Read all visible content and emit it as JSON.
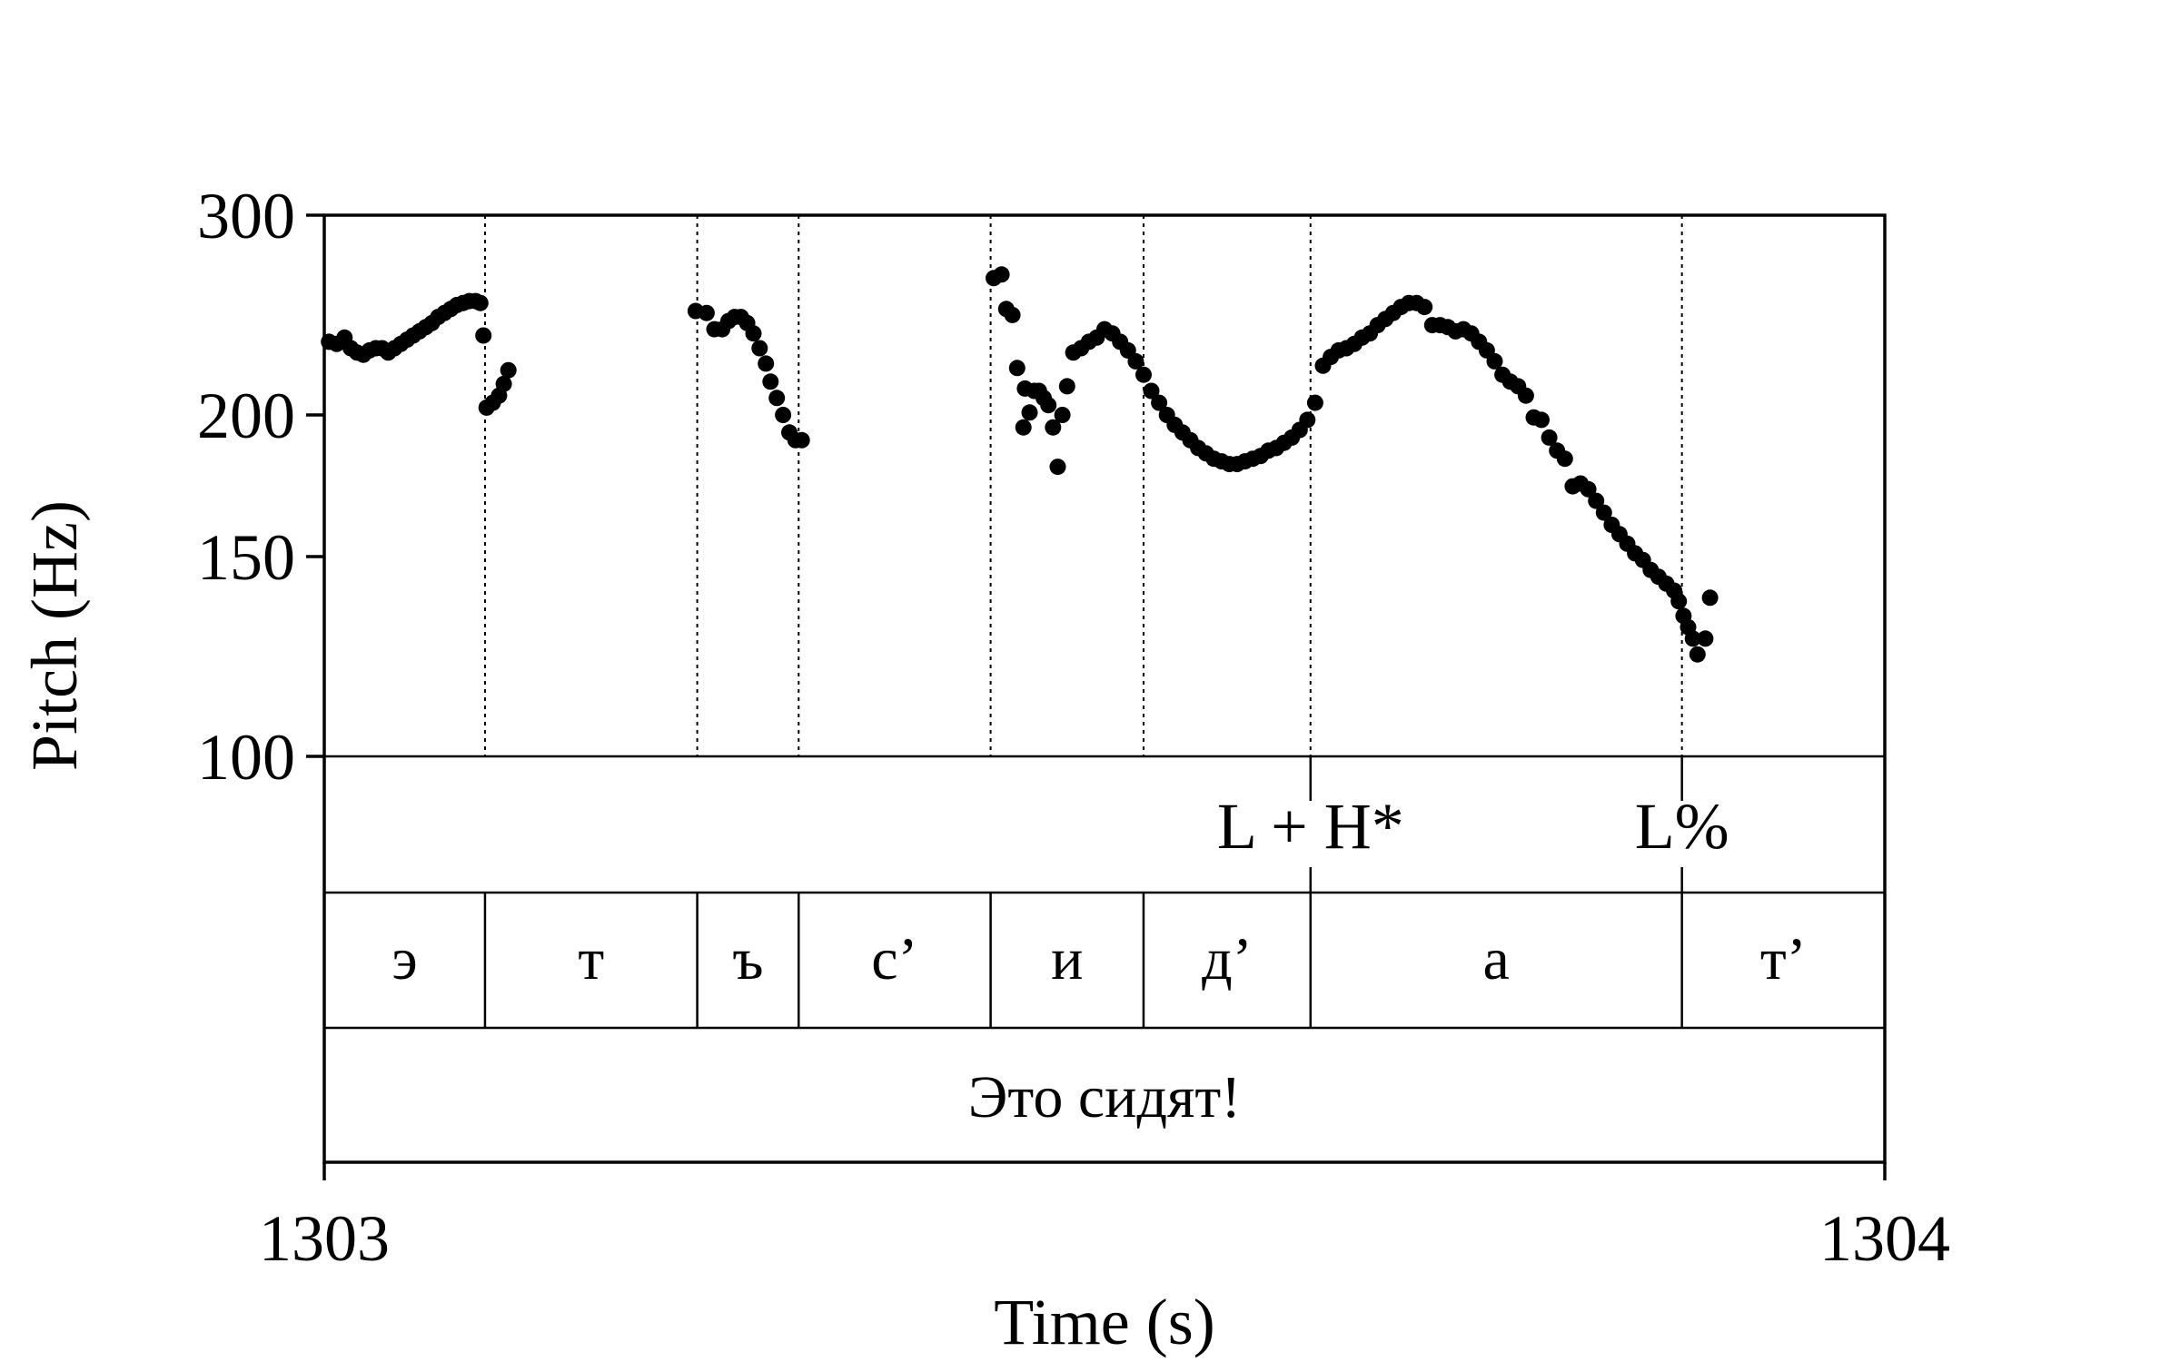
{
  "chart_data": {
    "type": "scatter",
    "title": "",
    "xlabel": "Time (s)",
    "ylabel": "Pitch (Hz)",
    "xlim": [
      1303,
      1304
    ],
    "ylim": [
      100,
      300
    ],
    "y_scale": "log",
    "x_tick_labels": [
      "1303",
      "1304"
    ],
    "y_ticks": [
      100,
      150,
      200,
      300
    ],
    "y_tick_labels": [
      "100",
      "150",
      "200",
      "300"
    ],
    "grid": false,
    "legend": "none",
    "series": [
      {
        "points": [
          [
            1303.003,
            232
          ],
          [
            1303.008,
            231
          ],
          [
            1303.013,
            234
          ],
          [
            1303.017,
            229
          ],
          [
            1303.021,
            227
          ],
          [
            1303.025,
            226
          ],
          [
            1303.029,
            228
          ],
          [
            1303.033,
            229
          ],
          [
            1303.037,
            229
          ],
          [
            1303.041,
            227
          ],
          [
            1303.045,
            229
          ],
          [
            1303.049,
            231
          ],
          [
            1303.053,
            233
          ],
          [
            1303.057,
            235
          ],
          [
            1303.061,
            237
          ],
          [
            1303.065,
            239
          ],
          [
            1303.069,
            241
          ],
          [
            1303.073,
            244
          ],
          [
            1303.077,
            246
          ],
          [
            1303.081,
            248
          ],
          [
            1303.085,
            250
          ],
          [
            1303.089,
            251
          ],
          [
            1303.093,
            252
          ],
          [
            1303.097,
            252
          ],
          [
            1303.1,
            251
          ],
          [
            1303.102,
            235
          ],
          [
            1303.104,
            203
          ],
          [
            1303.108,
            205
          ],
          [
            1303.112,
            208
          ],
          [
            1303.115,
            213
          ],
          [
            1303.118,
            219
          ],
          [
            1303.238,
            247
          ],
          [
            1303.245,
            246
          ],
          [
            1303.25,
            238
          ],
          [
            1303.255,
            238
          ],
          [
            1303.259,
            242
          ],
          [
            1303.263,
            244
          ],
          [
            1303.267,
            244
          ],
          [
            1303.271,
            241
          ],
          [
            1303.275,
            236
          ],
          [
            1303.279,
            229
          ],
          [
            1303.283,
            222
          ],
          [
            1303.286,
            214
          ],
          [
            1303.29,
            207
          ],
          [
            1303.294,
            200
          ],
          [
            1303.298,
            193
          ],
          [
            1303.302,
            190
          ],
          [
            1303.306,
            190
          ],
          [
            1303.429,
            264
          ],
          [
            1303.434,
            266
          ],
          [
            1303.437,
            248
          ],
          [
            1303.441,
            245
          ],
          [
            1303.444,
            220
          ],
          [
            1303.448,
            195
          ],
          [
            1303.449,
            211
          ],
          [
            1303.452,
            201
          ],
          [
            1303.455,
            210
          ],
          [
            1303.458,
            210
          ],
          [
            1303.461,
            207
          ],
          [
            1303.464,
            204
          ],
          [
            1303.467,
            195
          ],
          [
            1303.47,
            180
          ],
          [
            1303.473,
            200
          ],
          [
            1303.476,
            212
          ],
          [
            1303.48,
            227
          ],
          [
            1303.485,
            229
          ],
          [
            1303.49,
            232
          ],
          [
            1303.495,
            234
          ],
          [
            1303.5,
            238
          ],
          [
            1303.505,
            236
          ],
          [
            1303.51,
            232
          ],
          [
            1303.515,
            228
          ],
          [
            1303.52,
            223
          ],
          [
            1303.525,
            217
          ],
          [
            1303.53,
            210
          ],
          [
            1303.535,
            205
          ],
          [
            1303.54,
            200
          ],
          [
            1303.545,
            196
          ],
          [
            1303.55,
            193
          ],
          [
            1303.555,
            190
          ],
          [
            1303.56,
            187
          ],
          [
            1303.565,
            185
          ],
          [
            1303.57,
            183
          ],
          [
            1303.575,
            182
          ],
          [
            1303.58,
            181
          ],
          [
            1303.585,
            181
          ],
          [
            1303.59,
            182
          ],
          [
            1303.595,
            183
          ],
          [
            1303.6,
            184
          ],
          [
            1303.605,
            186
          ],
          [
            1303.61,
            187
          ],
          [
            1303.615,
            189
          ],
          [
            1303.62,
            191
          ],
          [
            1303.625,
            194
          ],
          [
            1303.63,
            198
          ],
          [
            1303.635,
            205
          ],
          [
            1303.64,
            221
          ],
          [
            1303.645,
            225
          ],
          [
            1303.65,
            228
          ],
          [
            1303.655,
            229
          ],
          [
            1303.66,
            231
          ],
          [
            1303.665,
            234
          ],
          [
            1303.67,
            236
          ],
          [
            1303.675,
            240
          ],
          [
            1303.68,
            243
          ],
          [
            1303.685,
            246
          ],
          [
            1303.69,
            249
          ],
          [
            1303.695,
            251
          ],
          [
            1303.7,
            251
          ],
          [
            1303.705,
            249
          ],
          [
            1303.71,
            240
          ],
          [
            1303.715,
            240
          ],
          [
            1303.72,
            239
          ],
          [
            1303.725,
            237
          ],
          [
            1303.73,
            238
          ],
          [
            1303.735,
            236
          ],
          [
            1303.74,
            232
          ],
          [
            1303.745,
            228
          ],
          [
            1303.75,
            223
          ],
          [
            1303.755,
            217
          ],
          [
            1303.76,
            214
          ],
          [
            1303.765,
            212
          ],
          [
            1303.77,
            208
          ],
          [
            1303.775,
            199
          ],
          [
            1303.78,
            198
          ],
          [
            1303.785,
            191
          ],
          [
            1303.79,
            186
          ],
          [
            1303.795,
            183
          ],
          [
            1303.8,
            173
          ],
          [
            1303.805,
            174
          ],
          [
            1303.81,
            172
          ],
          [
            1303.815,
            168
          ],
          [
            1303.82,
            164
          ],
          [
            1303.825,
            160
          ],
          [
            1303.83,
            157
          ],
          [
            1303.835,
            154
          ],
          [
            1303.84,
            151
          ],
          [
            1303.845,
            149
          ],
          [
            1303.85,
            146
          ],
          [
            1303.855,
            144
          ],
          [
            1303.86,
            142
          ],
          [
            1303.865,
            140
          ],
          [
            1303.868,
            137
          ],
          [
            1303.871,
            133
          ],
          [
            1303.874,
            130
          ],
          [
            1303.877,
            127
          ],
          [
            1303.88,
            123
          ],
          [
            1303.885,
            127
          ],
          [
            1303.888,
            138
          ]
        ]
      }
    ],
    "tiers": {
      "tones": [
        {
          "label": "L + H*",
          "time": 1303.632
        },
        {
          "label": "L%",
          "time": 1303.87
        }
      ],
      "segments": [
        {
          "label": "э",
          "start": 1303.0,
          "end": 1303.103
        },
        {
          "label": "т",
          "start": 1303.103,
          "end": 1303.239
        },
        {
          "label": "ъ",
          "start": 1303.239,
          "end": 1303.304
        },
        {
          "label": "с’",
          "start": 1303.304,
          "end": 1303.427
        },
        {
          "label": "и",
          "start": 1303.427,
          "end": 1303.525
        },
        {
          "label": "д’",
          "start": 1303.525,
          "end": 1303.632
        },
        {
          "label": "а",
          "start": 1303.632,
          "end": 1303.87
        },
        {
          "label": "т’",
          "start": 1303.87,
          "end": 1304.0
        }
      ],
      "utterance": {
        "label": "Это сидят!",
        "start": 1303.0,
        "end": 1304.0
      }
    }
  }
}
